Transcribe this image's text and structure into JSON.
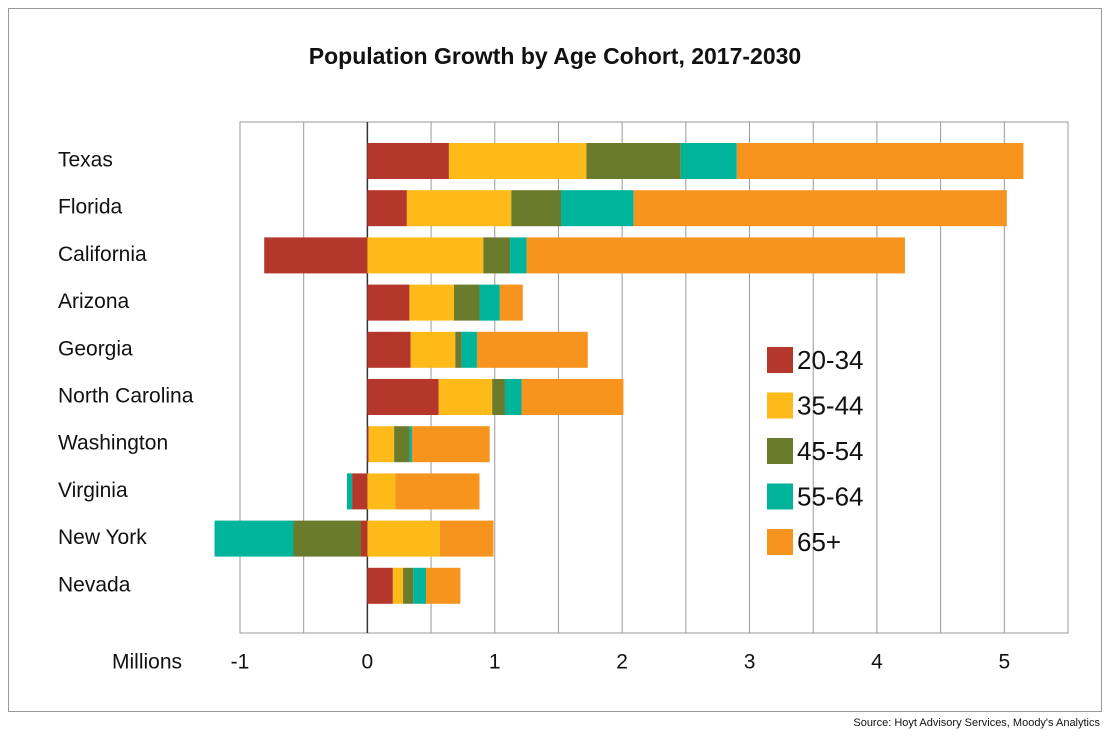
{
  "chart_data": {
    "type": "stacked-barh",
    "title": "Population Growth by Age Cohort, 2017-2030",
    "xlabel": "Millions",
    "source": "Source: Hoyt Advisory Services, Moody's Analytics",
    "categories": [
      "Texas",
      "Florida",
      "California",
      "Arizona",
      "Georgia",
      "North Carolina",
      "Washington",
      "Virginia",
      "New York",
      "Nevada"
    ],
    "series": [
      {
        "name": "20-34",
        "color": "#b5362b",
        "values": [
          0.64,
          0.31,
          -0.81,
          0.33,
          0.34,
          0.56,
          0.01,
          -0.12,
          -0.05,
          0.2
        ]
      },
      {
        "name": "35-44",
        "color": "#fdba19",
        "values": [
          1.08,
          0.82,
          0.91,
          0.35,
          0.35,
          0.42,
          0.2,
          0.22,
          0.57,
          0.08
        ]
      },
      {
        "name": "45-54",
        "color": "#6b7b2c",
        "values": [
          0.74,
          0.39,
          0.21,
          0.2,
          0.05,
          0.1,
          0.12,
          0,
          -0.53,
          0.08
        ]
      },
      {
        "name": "55-64",
        "color": "#00b49c",
        "values": [
          0.44,
          0.57,
          0.13,
          0.16,
          0.12,
          0.13,
          0.02,
          -0.04,
          -0.62,
          0.1
        ]
      },
      {
        "name": "65+",
        "color": "#f7941d",
        "values": [
          2.25,
          2.93,
          2.97,
          0.18,
          0.87,
          0.8,
          0.61,
          0.66,
          0.42,
          0.27
        ]
      }
    ],
    "xlim": [
      -1,
      5.5
    ],
    "xticks": [
      -1,
      0,
      1,
      2,
      3,
      4,
      5
    ],
    "minor_grid": [
      -0.5,
      0.5,
      1.5,
      2.5,
      3.5,
      4.5,
      5.5
    ],
    "grid": true
  }
}
